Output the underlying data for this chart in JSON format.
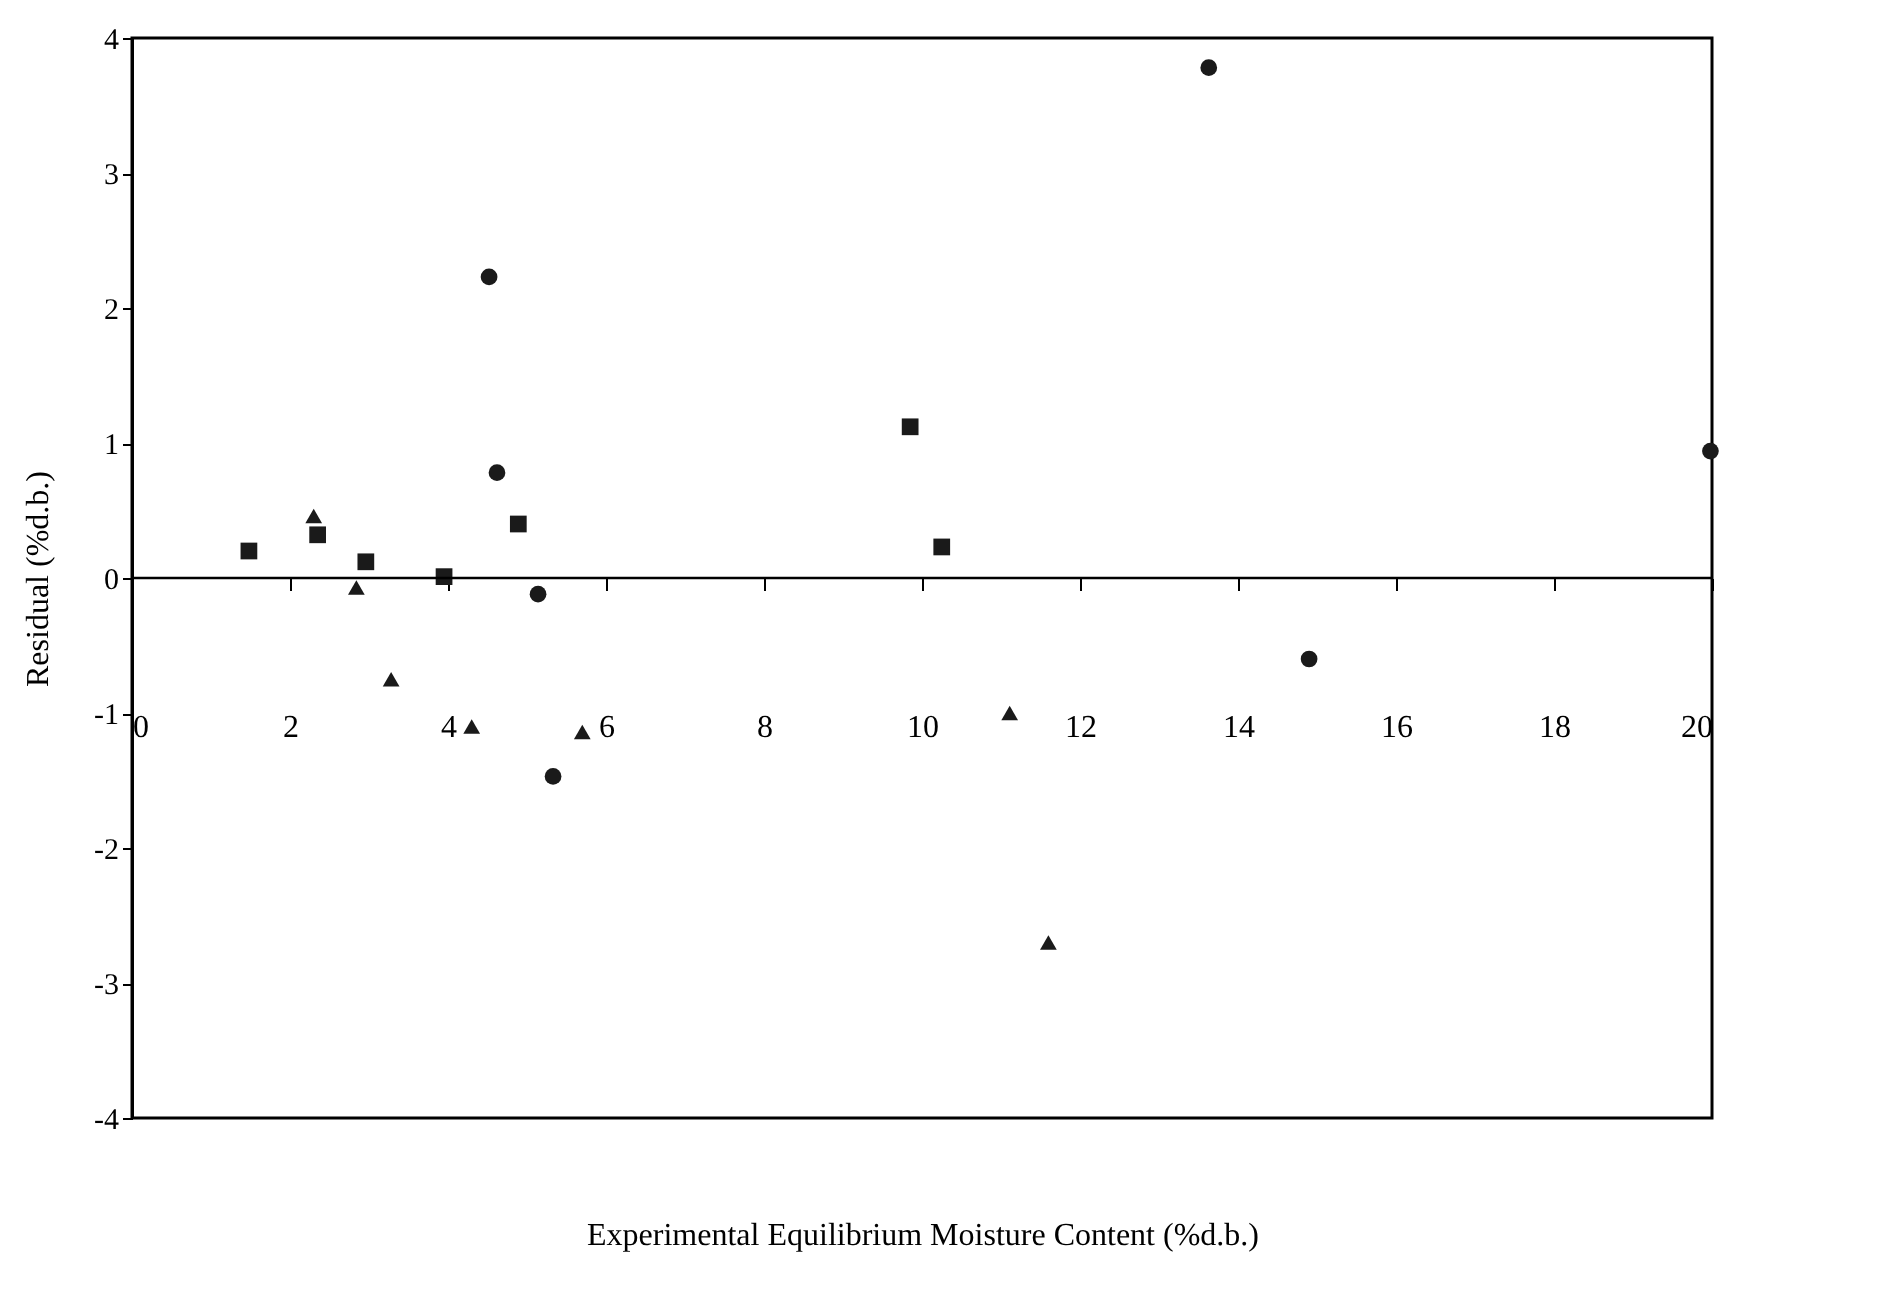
{
  "chart_data": {
    "type": "scatter",
    "xlabel": "Experimental Equilibrium Moisture Content (%d.b.)",
    "ylabel": "Residual (%d.b.)",
    "xlim": [
      0,
      20
    ],
    "ylim": [
      -4,
      4
    ],
    "xticks": [
      0,
      2,
      4,
      6,
      8,
      10,
      12,
      14,
      16,
      18,
      20
    ],
    "yticks": [
      -4,
      -3,
      -2,
      -1,
      0,
      1,
      2,
      3,
      4
    ],
    "grid": false,
    "legend": false,
    "ref_lines": [
      {
        "axis": "y",
        "value": 0
      }
    ],
    "series": [
      {
        "color": "#1a1a1a",
        "marker": "circle",
        "x": [
          4.52,
          4.62,
          5.14,
          5.33,
          13.63,
          14.9,
          19.98
        ],
        "values": [
          2.23,
          0.78,
          -0.12,
          -1.47,
          3.78,
          -0.6,
          0.94
        ]
      },
      {
        "color": "#1a1a1a",
        "marker": "square",
        "x": [
          1.48,
          2.35,
          2.96,
          3.95,
          4.89,
          9.85,
          10.25
        ],
        "values": [
          0.2,
          0.32,
          0.12,
          0.01,
          0.4,
          1.12,
          0.23
        ]
      },
      {
        "color": "#1a1a1a",
        "marker": "triangle",
        "x": [
          2.3,
          2.84,
          3.28,
          4.3,
          5.7,
          11.11,
          11.6
        ],
        "values": [
          0.46,
          -0.07,
          -0.75,
          -1.1,
          -1.14,
          -1.0,
          -2.7
        ]
      }
    ]
  }
}
